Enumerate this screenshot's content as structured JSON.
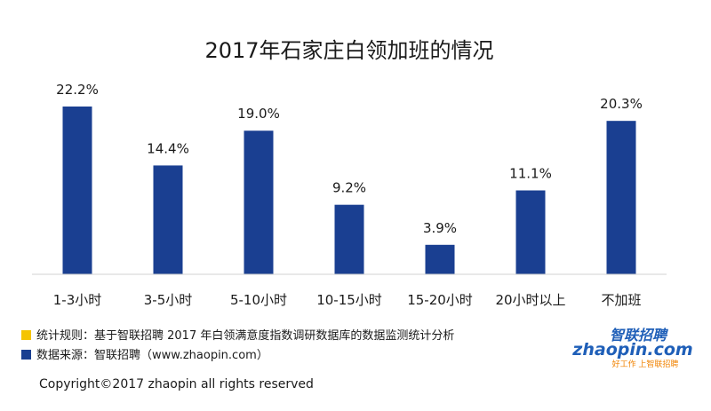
{
  "chart_data": {
    "type": "bar",
    "title": "2017年石家庄白领加班的情况",
    "categories": [
      "1-3小时",
      "3-5小时",
      "5-10小时",
      "10-15小时",
      "15-20小时",
      "20小时以上",
      "不加班"
    ],
    "values": [
      22.2,
      14.4,
      19.0,
      9.2,
      3.9,
      11.1,
      20.3
    ],
    "value_labels": [
      "22.2%",
      "14.4%",
      "19.0%",
      "9.2%",
      "3.9%",
      "11.1%",
      "20.3%"
    ],
    "unit": "%",
    "xlabel": "",
    "ylabel": "",
    "ylim": [
      0,
      22.2
    ],
    "grid": false,
    "bar_color": "#1a3f91"
  },
  "footer": {
    "rule_label": "统计规则：基于智联招聘 2017 年白领满意度指数调研数据库的数据监测统计分析",
    "source_label": "数据来源：智联招聘（www.zhaopin.com）",
    "rule_marker_color": "#f5c400",
    "source_marker_color": "#1a3f91",
    "copyright": "Copyright©2017 zhaopin all rights reserved"
  },
  "logo": {
    "text_latin": "zhaopin.com",
    "text_cn": "智联招聘",
    "tagline": "好工作 上智联招聘",
    "color_blue": "#1f5fb8",
    "color_orange": "#f08200"
  }
}
